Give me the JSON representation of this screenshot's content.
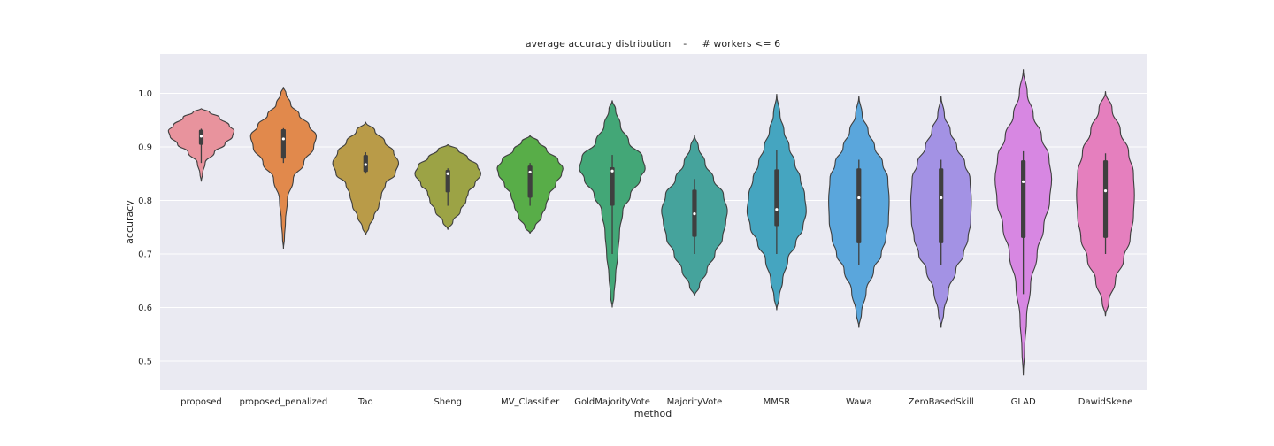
{
  "chart_data": {
    "type": "violin",
    "title": "average accuracy distribution    -     # workers <= 6",
    "xlabel": "method",
    "ylabel": "accuracy",
    "ylim": [
      0.445,
      1.072
    ],
    "yticks": [
      "0.5",
      "0.6",
      "0.7",
      "0.8",
      "0.9",
      "1.0"
    ],
    "grid": true,
    "background": "#eaeaf2",
    "series": [
      {
        "name": "proposed",
        "color": "#e8939d",
        "min": 0.835,
        "max": 0.972,
        "median": 0.92,
        "q1": 0.904,
        "q3": 0.932,
        "whisker": [
          0.87,
          0.934
        ],
        "profile": [
          [
            0.835,
            0
          ],
          [
            0.85,
            0.04
          ],
          [
            0.87,
            0.12
          ],
          [
            0.89,
            0.4
          ],
          [
            0.905,
            0.72
          ],
          [
            0.92,
            0.95
          ],
          [
            0.93,
            1.0
          ],
          [
            0.94,
            0.85
          ],
          [
            0.955,
            0.55
          ],
          [
            0.965,
            0.25
          ],
          [
            0.972,
            0
          ]
        ]
      },
      {
        "name": "proposed_penalized",
        "color": "#e1894c",
        "min": 0.71,
        "max": 1.012,
        "median": 0.915,
        "q1": 0.878,
        "q3": 0.933,
        "whisker": [
          0.87,
          0.935
        ],
        "profile": [
          [
            0.71,
            0
          ],
          [
            0.73,
            0.03
          ],
          [
            0.76,
            0.06
          ],
          [
            0.8,
            0.12
          ],
          [
            0.84,
            0.3
          ],
          [
            0.87,
            0.62
          ],
          [
            0.9,
            0.92
          ],
          [
            0.92,
            1.0
          ],
          [
            0.94,
            0.78
          ],
          [
            0.96,
            0.48
          ],
          [
            0.98,
            0.22
          ],
          [
            1.0,
            0.08
          ],
          [
            1.012,
            0
          ]
        ]
      },
      {
        "name": "Tao",
        "color": "#b99b48",
        "min": 0.735,
        "max": 0.947,
        "median": 0.867,
        "q1": 0.853,
        "q3": 0.885,
        "whisker": [
          0.85,
          0.89
        ],
        "profile": [
          [
            0.735,
            0
          ],
          [
            0.75,
            0.1
          ],
          [
            0.77,
            0.25
          ],
          [
            0.79,
            0.4
          ],
          [
            0.81,
            0.48
          ],
          [
            0.83,
            0.6
          ],
          [
            0.85,
            0.9
          ],
          [
            0.87,
            1.0
          ],
          [
            0.89,
            0.85
          ],
          [
            0.91,
            0.58
          ],
          [
            0.93,
            0.28
          ],
          [
            0.947,
            0
          ]
        ]
      },
      {
        "name": "Sheng",
        "color": "#9ca345",
        "min": 0.745,
        "max": 0.905,
        "median": 0.85,
        "q1": 0.815,
        "q3": 0.857,
        "whisker": [
          0.79,
          0.86
        ],
        "profile": [
          [
            0.745,
            0
          ],
          [
            0.76,
            0.15
          ],
          [
            0.78,
            0.38
          ],
          [
            0.8,
            0.55
          ],
          [
            0.815,
            0.62
          ],
          [
            0.83,
            0.82
          ],
          [
            0.85,
            1.0
          ],
          [
            0.865,
            0.9
          ],
          [
            0.88,
            0.6
          ],
          [
            0.895,
            0.3
          ],
          [
            0.905,
            0
          ]
        ]
      },
      {
        "name": "MV_Classifier",
        "color": "#58ad48",
        "min": 0.738,
        "max": 0.922,
        "median": 0.853,
        "q1": 0.805,
        "q3": 0.865,
        "whisker": [
          0.79,
          0.87
        ],
        "profile": [
          [
            0.738,
            0
          ],
          [
            0.75,
            0.15
          ],
          [
            0.77,
            0.35
          ],
          [
            0.79,
            0.48
          ],
          [
            0.81,
            0.58
          ],
          [
            0.83,
            0.78
          ],
          [
            0.85,
            0.96
          ],
          [
            0.86,
            1.0
          ],
          [
            0.875,
            0.85
          ],
          [
            0.895,
            0.5
          ],
          [
            0.91,
            0.25
          ],
          [
            0.922,
            0
          ]
        ]
      },
      {
        "name": "GoldMajorityVote",
        "color": "#43a777",
        "min": 0.6,
        "max": 0.987,
        "median": 0.855,
        "q1": 0.79,
        "q3": 0.862,
        "whisker": [
          0.7,
          0.885
        ],
        "profile": [
          [
            0.6,
            0
          ],
          [
            0.62,
            0.05
          ],
          [
            0.66,
            0.1
          ],
          [
            0.7,
            0.17
          ],
          [
            0.74,
            0.22
          ],
          [
            0.78,
            0.32
          ],
          [
            0.81,
            0.55
          ],
          [
            0.84,
            0.85
          ],
          [
            0.86,
            1.0
          ],
          [
            0.88,
            0.92
          ],
          [
            0.91,
            0.5
          ],
          [
            0.94,
            0.25
          ],
          [
            0.97,
            0.1
          ],
          [
            0.987,
            0
          ]
        ]
      },
      {
        "name": "MajorityVote",
        "color": "#45a39c",
        "min": 0.621,
        "max": 0.922,
        "median": 0.775,
        "q1": 0.732,
        "q3": 0.82,
        "whisker": [
          0.7,
          0.84
        ],
        "profile": [
          [
            0.621,
            0
          ],
          [
            0.64,
            0.15
          ],
          [
            0.67,
            0.38
          ],
          [
            0.7,
            0.62
          ],
          [
            0.73,
            0.85
          ],
          [
            0.76,
            0.95
          ],
          [
            0.78,
            1.0
          ],
          [
            0.81,
            0.88
          ],
          [
            0.84,
            0.58
          ],
          [
            0.87,
            0.32
          ],
          [
            0.9,
            0.12
          ],
          [
            0.922,
            0
          ]
        ]
      },
      {
        "name": "MMSR",
        "color": "#45a5c0",
        "min": 0.595,
        "max": 0.999,
        "median": 0.783,
        "q1": 0.752,
        "q3": 0.858,
        "whisker": [
          0.7,
          0.895
        ],
        "profile": [
          [
            0.595,
            0
          ],
          [
            0.62,
            0.08
          ],
          [
            0.65,
            0.18
          ],
          [
            0.69,
            0.34
          ],
          [
            0.72,
            0.58
          ],
          [
            0.75,
            0.8
          ],
          [
            0.78,
            0.9
          ],
          [
            0.81,
            0.85
          ],
          [
            0.84,
            0.72
          ],
          [
            0.87,
            0.55
          ],
          [
            0.9,
            0.38
          ],
          [
            0.93,
            0.22
          ],
          [
            0.96,
            0.1
          ],
          [
            0.999,
            0
          ]
        ]
      },
      {
        "name": "Wawa",
        "color": "#5aa6dc",
        "min": 0.562,
        "max": 0.995,
        "median": 0.805,
        "q1": 0.72,
        "q3": 0.86,
        "whisker": [
          0.68,
          0.876
        ],
        "profile": [
          [
            0.562,
            0
          ],
          [
            0.59,
            0.08
          ],
          [
            0.63,
            0.22
          ],
          [
            0.67,
            0.45
          ],
          [
            0.7,
            0.68
          ],
          [
            0.73,
            0.82
          ],
          [
            0.76,
            0.9
          ],
          [
            0.8,
            0.92
          ],
          [
            0.84,
            0.88
          ],
          [
            0.87,
            0.72
          ],
          [
            0.9,
            0.48
          ],
          [
            0.93,
            0.28
          ],
          [
            0.96,
            0.1
          ],
          [
            0.995,
            0
          ]
        ]
      },
      {
        "name": "ZeroBasedSkill",
        "color": "#a392e4",
        "min": 0.562,
        "max": 0.995,
        "median": 0.805,
        "q1": 0.72,
        "q3": 0.86,
        "whisker": [
          0.68,
          0.876
        ],
        "profile": [
          [
            0.562,
            0
          ],
          [
            0.59,
            0.08
          ],
          [
            0.63,
            0.22
          ],
          [
            0.67,
            0.45
          ],
          [
            0.7,
            0.68
          ],
          [
            0.73,
            0.82
          ],
          [
            0.76,
            0.9
          ],
          [
            0.8,
            0.92
          ],
          [
            0.84,
            0.88
          ],
          [
            0.87,
            0.72
          ],
          [
            0.9,
            0.48
          ],
          [
            0.93,
            0.28
          ],
          [
            0.96,
            0.1
          ],
          [
            0.995,
            0
          ]
        ]
      },
      {
        "name": "GLAD",
        "color": "#d787e2",
        "min": 0.473,
        "max": 1.045,
        "median": 0.835,
        "q1": 0.73,
        "q3": 0.875,
        "whisker": [
          0.625,
          0.892
        ],
        "profile": [
          [
            0.473,
            0
          ],
          [
            0.52,
            0.04
          ],
          [
            0.58,
            0.1
          ],
          [
            0.64,
            0.22
          ],
          [
            0.7,
            0.42
          ],
          [
            0.75,
            0.62
          ],
          [
            0.8,
            0.8
          ],
          [
            0.84,
            0.86
          ],
          [
            0.88,
            0.78
          ],
          [
            0.92,
            0.55
          ],
          [
            0.96,
            0.3
          ],
          [
            1.0,
            0.12
          ],
          [
            1.045,
            0
          ]
        ]
      },
      {
        "name": "DawidSkene",
        "color": "#e57fbe",
        "min": 0.584,
        "max": 1.004,
        "median": 0.818,
        "q1": 0.73,
        "q3": 0.875,
        "whisker": [
          0.7,
          0.888
        ],
        "profile": [
          [
            0.584,
            0
          ],
          [
            0.61,
            0.1
          ],
          [
            0.65,
            0.3
          ],
          [
            0.69,
            0.55
          ],
          [
            0.73,
            0.75
          ],
          [
            0.77,
            0.85
          ],
          [
            0.81,
            0.88
          ],
          [
            0.85,
            0.85
          ],
          [
            0.89,
            0.7
          ],
          [
            0.93,
            0.45
          ],
          [
            0.97,
            0.2
          ],
          [
            1.004,
            0
          ]
        ]
      }
    ]
  }
}
